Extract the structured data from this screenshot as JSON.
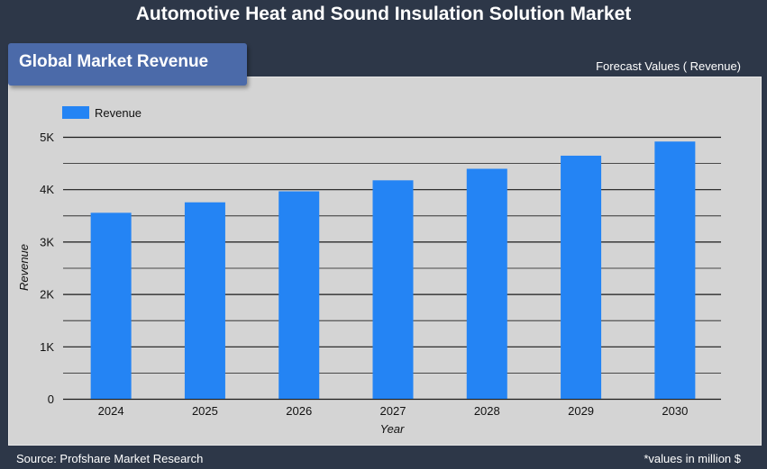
{
  "header": {
    "title": "Automotive Heat and Sound Insulation Solution Market",
    "badge": "Global Market Revenue",
    "forecast_label": "Forecast Values ( Revenue)"
  },
  "footer": {
    "source": "Source: Profshare Market Research",
    "unit_note": "*values in million $"
  },
  "colors": {
    "bar": "#2484f4",
    "background": "#2d3748",
    "panel": "#d4d4d4"
  },
  "chart_data": {
    "type": "bar",
    "categories": [
      "2024",
      "2025",
      "2026",
      "2027",
      "2028",
      "2029",
      "2030"
    ],
    "series": [
      {
        "name": "Revenue",
        "values": [
          3550,
          3750,
          3960,
          4170,
          4390,
          4640,
          4910
        ]
      }
    ],
    "xlabel": "Year",
    "ylabel": "Revenue",
    "ylim": [
      0,
      5000
    ],
    "yticks": [
      {
        "value": 0,
        "label": "0"
      },
      {
        "value": 1000,
        "label": "1K"
      },
      {
        "value": 2000,
        "label": "2K"
      },
      {
        "value": 3000,
        "label": "3K"
      },
      {
        "value": 4000,
        "label": "4K"
      },
      {
        "value": 5000,
        "label": "5K"
      }
    ],
    "grid": true,
    "legend": "top-left"
  }
}
